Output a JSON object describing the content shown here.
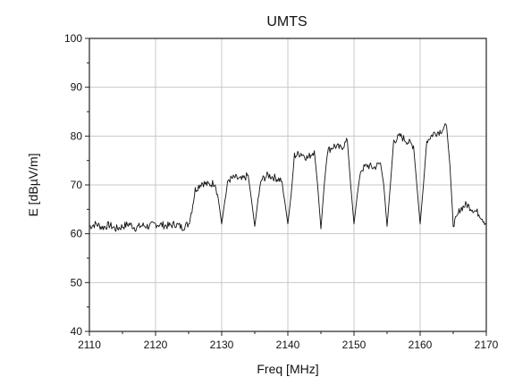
{
  "chart_data": {
    "type": "line",
    "title": "UMTS",
    "xlabel": "Freq [MHz]",
    "ylabel": "E [dBµV/m]",
    "xlim": [
      2110,
      2170
    ],
    "ylim": [
      40,
      100
    ],
    "x_ticks": [
      2110,
      2120,
      2130,
      2140,
      2150,
      2160,
      2170
    ],
    "y_ticks": [
      40,
      50,
      60,
      70,
      80,
      90,
      100
    ],
    "x_tick_labels": [
      "2110",
      "2120",
      "2130",
      "2140",
      "2150",
      "2160",
      "2170"
    ],
    "y_tick_labels": [
      "40",
      "50",
      "60",
      "70",
      "80",
      "90",
      "100"
    ],
    "grid": true,
    "legend": "none",
    "series": [
      {
        "color": "#111111",
        "x": [
          2110,
          2111,
          2112,
          2113,
          2114,
          2115,
          2116,
          2117,
          2118,
          2119,
          2120,
          2121,
          2122,
          2123,
          2124,
          2125,
          2125.5,
          2126,
          2127,
          2128,
          2129,
          2129.5,
          2130,
          2130.5,
          2131,
          2132,
          2133,
          2134,
          2134.5,
          2135,
          2135.5,
          2136,
          2137,
          2138,
          2139,
          2139.5,
          2140,
          2140.5,
          2141,
          2142,
          2143,
          2144,
          2144.5,
          2145,
          2145.5,
          2146,
          2147,
          2148,
          2149,
          2149.5,
          2150,
          2150.5,
          2151,
          2152,
          2153,
          2154,
          2154.5,
          2155,
          2155.5,
          2156,
          2157,
          2158,
          2159,
          2159.5,
          2160,
          2160.5,
          2161,
          2162,
          2163,
          2164,
          2164.5,
          2165,
          2165.5,
          2166,
          2167,
          2168,
          2169,
          2170
        ],
        "y": [
          61.5,
          62,
          61.3,
          61.8,
          61,
          61.5,
          62,
          61.2,
          61.7,
          61.5,
          62,
          61.8,
          61.6,
          62,
          61.3,
          62,
          65,
          69,
          70.5,
          70,
          70.5,
          67,
          62,
          67,
          71,
          71.5,
          71,
          72,
          67,
          61.5,
          67,
          71,
          72,
          71.5,
          71,
          67,
          62,
          68,
          76,
          76.5,
          75.5,
          77,
          70,
          61,
          70,
          77,
          78,
          77.5,
          79,
          70,
          62,
          68,
          73,
          74,
          73.5,
          74.5,
          70,
          61.5,
          70,
          79,
          80,
          79,
          78,
          70,
          62,
          70,
          79,
          80.5,
          81,
          82,
          74,
          62,
          63,
          65,
          66,
          65,
          64,
          62
        ]
      }
    ]
  }
}
